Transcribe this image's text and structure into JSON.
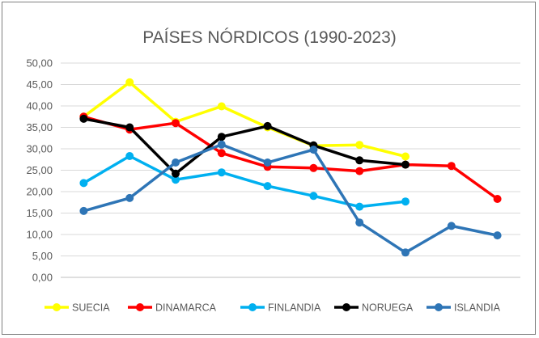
{
  "chart_data": {
    "type": "line",
    "title": "PAÍSES NÓRDICOS (1990-2023)",
    "xlabel": "",
    "ylabel": "",
    "ylim": [
      0,
      50
    ],
    "y_ticks": [
      "0,00",
      "5,00",
      "10,00",
      "15,00",
      "20,00",
      "25,00",
      "30,00",
      "35,00",
      "40,00",
      "45,00",
      "50,00"
    ],
    "grid": true,
    "legend_position": "bottom",
    "x": [
      1,
      2,
      3,
      4,
      5,
      6,
      7,
      8,
      9,
      10
    ],
    "series": [
      {
        "name": "SUECIA",
        "color": "#ffff00",
        "values": [
          37.5,
          45.5,
          36.3,
          39.9,
          35.0,
          30.7,
          30.9,
          28.2,
          null,
          null
        ]
      },
      {
        "name": "DINAMARCA",
        "color": "#ff0000",
        "values": [
          37.5,
          34.5,
          36.0,
          29.0,
          25.8,
          25.5,
          24.8,
          26.3,
          26.0,
          18.3
        ]
      },
      {
        "name": "FINLANDIA",
        "color": "#00b0f0",
        "values": [
          22.0,
          28.3,
          22.8,
          24.5,
          21.3,
          19.0,
          16.5,
          17.7,
          null,
          null
        ]
      },
      {
        "name": "NORUEGA",
        "color": "#000000",
        "values": [
          37.0,
          35.0,
          24.2,
          32.8,
          35.3,
          30.8,
          27.3,
          26.3,
          null,
          null
        ]
      },
      {
        "name": "ISLANDIA",
        "color": "#2e75b6",
        "values": [
          15.5,
          18.5,
          26.8,
          31.0,
          26.8,
          29.8,
          12.8,
          5.8,
          12.0,
          9.8
        ]
      }
    ]
  }
}
